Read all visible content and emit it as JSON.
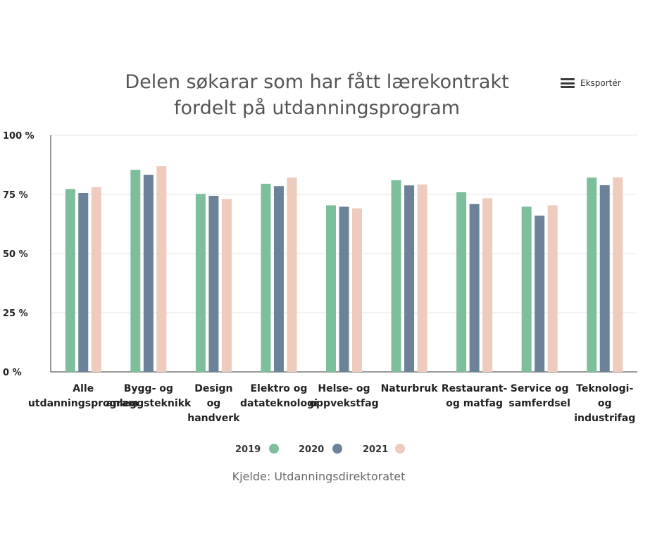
{
  "header": {
    "title_line1": "Delen søkarar som har fått lærekontrakt",
    "title_line2": "fordelt på utdanningsprogram",
    "export_label": "Eksportér"
  },
  "source": "Kjelde: Utdanningsdirektoratet",
  "colors": {
    "s2019": "#7dbf9b",
    "s2020": "#6b8299",
    "s2021": "#eecbbd",
    "grid": "#e6e6e6",
    "axis": "#333333",
    "text": "#222222"
  },
  "chart_data": {
    "type": "bar",
    "title": "Delen søkarar som har fått lærekontrakt fordelt på utdanningsprogram",
    "categories": [
      [
        "Alle",
        "utdanningsprogram"
      ],
      [
        "Bygg- og",
        "anleggsteknikk"
      ],
      [
        "Design",
        "og",
        "handverk"
      ],
      [
        "Elektro og",
        "datateknologi"
      ],
      [
        "Helse- og",
        "oppvekstfag"
      ],
      [
        "Naturbruk"
      ],
      [
        "Restaurant-",
        "og matfag"
      ],
      [
        "Service og",
        "samferdsel"
      ],
      [
        "Teknologi-",
        "og",
        "industrifag"
      ]
    ],
    "series": [
      {
        "name": "2019",
        "color": "#7dbf9b",
        "values": [
          77.3,
          85.4,
          75.2,
          79.5,
          70.4,
          81.0,
          75.9,
          69.8,
          82.1
        ]
      },
      {
        "name": "2020",
        "color": "#6b8299",
        "values": [
          75.6,
          83.3,
          74.4,
          78.5,
          69.8,
          78.8,
          70.9,
          66.0,
          78.9
        ]
      },
      {
        "name": "2021",
        "color": "#eecbbd",
        "values": [
          78.1,
          86.9,
          73.0,
          82.1,
          69.1,
          79.2,
          73.4,
          70.4,
          82.2
        ]
      }
    ],
    "ylim": [
      0,
      100
    ],
    "yticks": [
      {
        "value": 0,
        "label": "0 %"
      },
      {
        "value": 25,
        "label": "25 %"
      },
      {
        "value": 50,
        "label": "50 %"
      },
      {
        "value": 75,
        "label": "75 %"
      },
      {
        "value": 100,
        "label": "100 %"
      }
    ],
    "grid": true,
    "legend": "bottom-center",
    "xlabel": "",
    "ylabel": ""
  }
}
